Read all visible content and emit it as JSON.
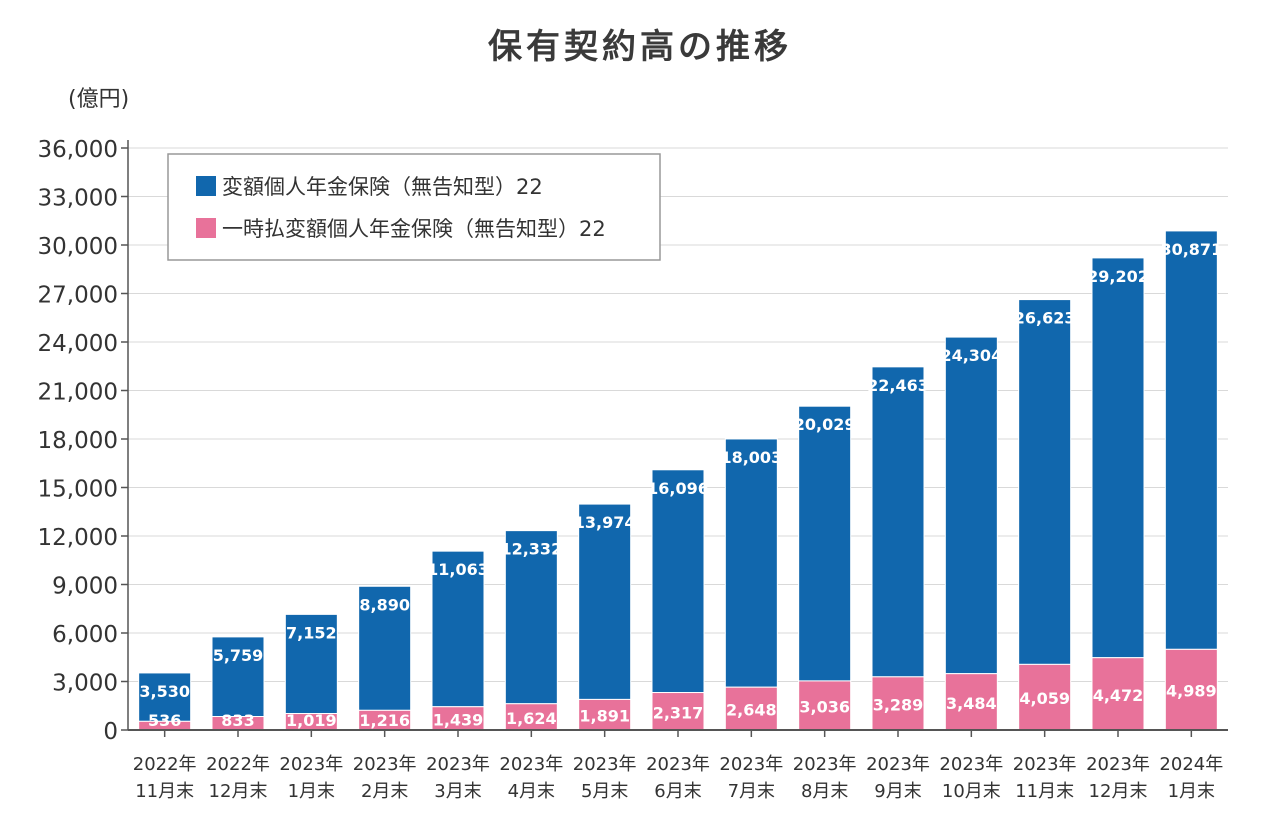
{
  "chart_data": {
    "type": "bar",
    "stacked": true,
    "title": "保有契約高の推移",
    "unit_label": "(億円)",
    "ylim": [
      0,
      36000
    ],
    "yticks": [
      "0",
      "3,000",
      "6,000",
      "9,000",
      "12,000",
      "15,000",
      "18,000",
      "21,000",
      "24,000",
      "27,000",
      "30,000",
      "33,000",
      "36,000"
    ],
    "categories": [
      [
        "2022年",
        "11月末"
      ],
      [
        "2022年",
        "12月末"
      ],
      [
        "2023年",
        "1月末"
      ],
      [
        "2023年",
        "2月末"
      ],
      [
        "2023年",
        "3月末"
      ],
      [
        "2023年",
        "4月末"
      ],
      [
        "2023年",
        "5月末"
      ],
      [
        "2023年",
        "6月末"
      ],
      [
        "2023年",
        "7月末"
      ],
      [
        "2023年",
        "8月末"
      ],
      [
        "2023年",
        "9月末"
      ],
      [
        "2023年",
        "10月末"
      ],
      [
        "2023年",
        "11月末"
      ],
      [
        "2023年",
        "12月末"
      ],
      [
        "2024年",
        "1月末"
      ]
    ],
    "series": [
      {
        "name": "一時払変額個人年金保険（無告知型）22",
        "color": "#e8729a",
        "values": [
          536,
          833,
          1019,
          1216,
          1439,
          1624,
          1891,
          2317,
          2648,
          3036,
          3289,
          3484,
          4059,
          4472,
          4989
        ],
        "labels": [
          "536",
          "833",
          "1,019",
          "1,216",
          "1,439",
          "1,624",
          "1,891",
          "2,317",
          "2,648",
          "3,036",
          "3,289",
          "3,484",
          "4,059",
          "4,472",
          "4,989"
        ]
      },
      {
        "name": "変額個人年金保険（無告知型）22",
        "color": "#1167ad",
        "values": [
          3530,
          5759,
          7152,
          8890,
          11063,
          12332,
          13974,
          16096,
          18003,
          20029,
          22463,
          24304,
          26623,
          29202,
          30871
        ],
        "labels": [
          "3,530",
          "5,759",
          "7,152",
          "8,890",
          "11,063",
          "12,332",
          "13,974",
          "16,096",
          "18,003",
          "20,029",
          "22,463",
          "24,304",
          "26,623",
          "29,202",
          "30,871"
        ]
      }
    ],
    "legend": {
      "placement": "top-left",
      "order": [
        1,
        0
      ]
    },
    "grid": true
  }
}
